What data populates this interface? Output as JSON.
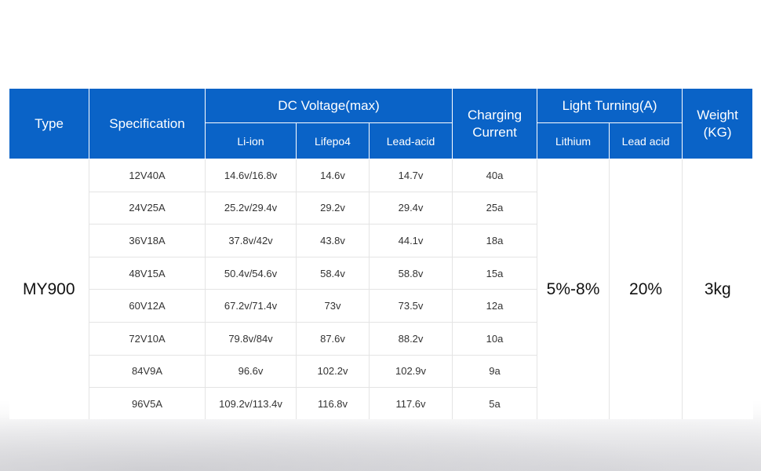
{
  "headers": {
    "type": "Type",
    "specification": "Specification",
    "dc_voltage": "DC Voltage(max)",
    "li_ion": "Li-ion",
    "lifepo4": "Lifepo4",
    "lead_acid": "Lead-acid",
    "charging_line1": "Charging",
    "charging_line2": "Current",
    "light_turning": "Light Turning(A)",
    "lithium": "Lithium",
    "lead_acid_light": "Lead acid",
    "weight_line1": "Weight",
    "weight_line2": "(KG)"
  },
  "model": "MY900",
  "light_lithium": "5%-8%",
  "light_lead_acid": "20%",
  "weight": "3kg",
  "rows": [
    {
      "spec": "12V40A",
      "li_ion": "14.6v/16.8v",
      "lifepo4": "14.6v",
      "lead_acid": "14.7v",
      "current": "40a"
    },
    {
      "spec": "24V25A",
      "li_ion": "25.2v/29.4v",
      "lifepo4": "29.2v",
      "lead_acid": "29.4v",
      "current": "25a"
    },
    {
      "spec": "36V18A",
      "li_ion": "37.8v/42v",
      "lifepo4": "43.8v",
      "lead_acid": "44.1v",
      "current": "18a"
    },
    {
      "spec": "48V15A",
      "li_ion": "50.4v/54.6v",
      "lifepo4": "58.4v",
      "lead_acid": "58.8v",
      "current": "15a"
    },
    {
      "spec": "60V12A",
      "li_ion": "67.2v/71.4v",
      "lifepo4": "73v",
      "lead_acid": "73.5v",
      "current": "12a"
    },
    {
      "spec": "72V10A",
      "li_ion": "79.8v/84v",
      "lifepo4": "87.6v",
      "lead_acid": "88.2v",
      "current": "10a"
    },
    {
      "spec": "84V9A",
      "li_ion": "96.6v",
      "lifepo4": "102.2v",
      "lead_acid": "102.9v",
      "current": "9a"
    },
    {
      "spec": "96V5A",
      "li_ion": "109.2v/113.4v",
      "lifepo4": "116.8v",
      "lead_acid": "117.6v",
      "current": "5a"
    }
  ],
  "colors": {
    "header_blue": "#0a63c7",
    "grid_line": "#e4e4e4"
  }
}
